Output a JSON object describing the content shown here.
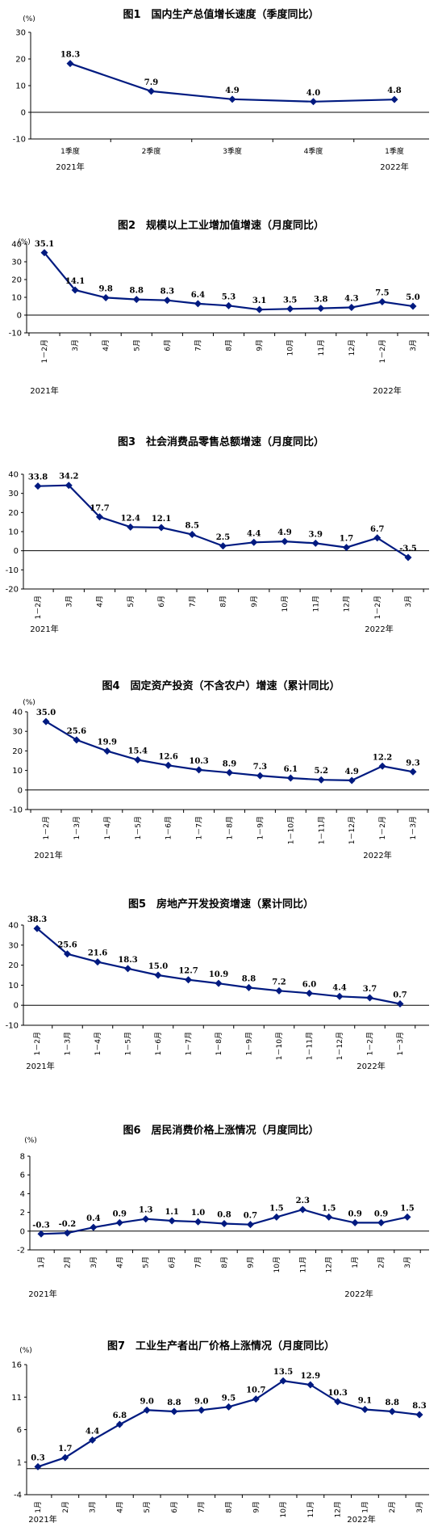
{
  "chart_data": [
    {
      "type": "line",
      "title": "图1　国内生产总值增长速度（季度同比）",
      "unit": "(%)",
      "categories": [
        "1季度",
        "2季度",
        "3季度",
        "4季度",
        "1季度"
      ],
      "values": [
        18.3,
        7.9,
        4.9,
        4.0,
        4.8
      ],
      "labels": [
        "18.3",
        "7.9",
        "4.9",
        "4.0",
        "4.8"
      ],
      "ylim": [
        -10,
        30
      ],
      "yticks": [
        -10,
        0,
        10,
        20,
        30
      ],
      "years": [
        "2021年",
        "2022年"
      ],
      "color": "#001a80",
      "grid": false
    },
    {
      "type": "line",
      "title": "图2　规模以上工业增加值增速（月度同比）",
      "unit": "(%)",
      "categories": [
        "1－2月",
        "3月",
        "4月",
        "5月",
        "6月",
        "7月",
        "8月",
        "9月",
        "10月",
        "11月",
        "12月",
        "1－2月",
        "3月"
      ],
      "values": [
        35.1,
        14.1,
        9.8,
        8.8,
        8.3,
        6.4,
        5.3,
        3.1,
        3.5,
        3.8,
        4.3,
        7.5,
        5.0
      ],
      "labels": [
        "35.1",
        "14.1",
        "9.8",
        "8.8",
        "8.3",
        "6.4",
        "5.3",
        "3.1",
        "3.5",
        "3.8",
        "4.3",
        "7.5",
        "5.0"
      ],
      "ylim": [
        -10,
        40
      ],
      "yticks": [
        -10,
        0,
        10,
        20,
        30,
        40
      ],
      "years": [
        "2021年",
        "2022年"
      ],
      "color": "#001a80",
      "grid": false
    },
    {
      "type": "line",
      "title": "图3　社会消费品零售总额增速（月度同比）",
      "unit": "",
      "categories": [
        "1－2月",
        "3月",
        "4月",
        "5月",
        "6月",
        "7月",
        "8月",
        "9月",
        "10月",
        "11月",
        "12月",
        "1－2月",
        "3月"
      ],
      "values": [
        33.8,
        34.2,
        17.7,
        12.4,
        12.1,
        8.5,
        2.5,
        4.4,
        4.9,
        3.9,
        1.7,
        6.7,
        -3.5
      ],
      "labels": [
        "33.8",
        "34.2",
        "17.7",
        "12.4",
        "12.1",
        "8.5",
        "2.5",
        "4.4",
        "4.9",
        "3.9",
        "1.7",
        "6.7",
        "-3.5"
      ],
      "ylim": [
        -20,
        40
      ],
      "yticks": [
        -20,
        -10,
        0,
        10,
        20,
        30,
        40
      ],
      "years": [
        "2021年",
        "2022年"
      ],
      "color": "#001a80",
      "grid": false
    },
    {
      "type": "line",
      "title": "图4　固定资产投资（不含农户）增速（累计同比）",
      "unit": "(%)",
      "categories": [
        "1－2月",
        "1－3月",
        "1－4月",
        "1－5月",
        "1－6月",
        "1－7月",
        "1－8月",
        "1－9月",
        "1－10月",
        "1－11月",
        "1－12月",
        "1－2月",
        "1－3月"
      ],
      "values": [
        35.0,
        25.6,
        19.9,
        15.4,
        12.6,
        10.3,
        8.9,
        7.3,
        6.1,
        5.2,
        4.9,
        12.2,
        9.3
      ],
      "labels": [
        "35.0",
        "25.6",
        "19.9",
        "15.4",
        "12.6",
        "10.3",
        "8.9",
        "7.3",
        "6.1",
        "5.2",
        "4.9",
        "12.2",
        "9.3"
      ],
      "ylim": [
        -10,
        40
      ],
      "yticks": [
        -10,
        0,
        10,
        20,
        30,
        40
      ],
      "years": [
        "2021年",
        "2022年"
      ],
      "color": "#001a80",
      "grid": false
    },
    {
      "type": "line",
      "title": "图5　房地产开发投资增速（累计同比）",
      "unit": "",
      "categories": [
        "1－2月",
        "1－3月",
        "1－4月",
        "1－5月",
        "1－6月",
        "1－7月",
        "1－8月",
        "1－9月",
        "1－10月",
        "1－11月",
        "1－12月",
        "1－2月",
        "1－3月"
      ],
      "values": [
        38.3,
        25.6,
        21.6,
        18.3,
        15.0,
        12.7,
        10.9,
        8.8,
        7.2,
        6.0,
        4.4,
        3.7,
        0.7
      ],
      "labels": [
        "38.3",
        "25.6",
        "21.6",
        "18.3",
        "15.0",
        "12.7",
        "10.9",
        "8.8",
        "7.2",
        "6.0",
        "4.4",
        "3.7",
        "0.7"
      ],
      "ylim": [
        -10,
        40
      ],
      "yticks": [
        -10,
        0,
        10,
        20,
        30,
        40
      ],
      "years": [
        "2021年",
        "2022年"
      ],
      "color": "#001a80",
      "grid": false
    },
    {
      "type": "line",
      "title": "图6　居民消费价格上涨情况（月度同比）",
      "unit": "(%)",
      "categories": [
        "1月",
        "2月",
        "3月",
        "4月",
        "5月",
        "6月",
        "7月",
        "8月",
        "9月",
        "10月",
        "11月",
        "12月",
        "1月",
        "2月",
        "3月"
      ],
      "values": [
        -0.3,
        -0.2,
        0.4,
        0.9,
        1.3,
        1.1,
        1.0,
        0.8,
        0.7,
        1.5,
        2.3,
        1.5,
        0.9,
        0.9,
        1.5
      ],
      "labels": [
        "-0.3",
        "-0.2",
        "0.4",
        "0.9",
        "1.3",
        "1.1",
        "1.0",
        "0.8",
        "0.7",
        "1.5",
        "2.3",
        "1.5",
        "0.9",
        "0.9",
        "1.5"
      ],
      "ylim": [
        -2,
        8
      ],
      "yticks": [
        -2,
        0,
        2,
        4,
        6,
        8
      ],
      "years": [
        "2021年",
        "2022年"
      ],
      "color": "#001a80",
      "grid": false
    },
    {
      "type": "line",
      "title": "图7　工业生产者出厂价格上涨情况（月度同比）",
      "unit": "(%)",
      "categories": [
        "1月",
        "2月",
        "3月",
        "4月",
        "5月",
        "6月",
        "7月",
        "8月",
        "9月",
        "10月",
        "11月",
        "12月",
        "1月",
        "2月",
        "3月"
      ],
      "values": [
        0.3,
        1.7,
        4.4,
        6.8,
        9.0,
        8.8,
        9.0,
        9.5,
        10.7,
        13.5,
        12.9,
        10.3,
        9.1,
        8.8,
        8.3
      ],
      "labels": [
        "0.3",
        "1.7",
        "4.4",
        "6.8",
        "9.0",
        "8.8",
        "9.0",
        "9.5",
        "10.7",
        "13.5",
        "12.9",
        "10.3",
        "9.1",
        "8.8",
        "8.3"
      ],
      "ylim": [
        -4,
        16
      ],
      "yticks": [
        -4,
        1,
        6,
        11,
        16
      ],
      "years": [
        "2021年",
        "2022年"
      ],
      "color": "#001a80",
      "grid": false
    }
  ]
}
